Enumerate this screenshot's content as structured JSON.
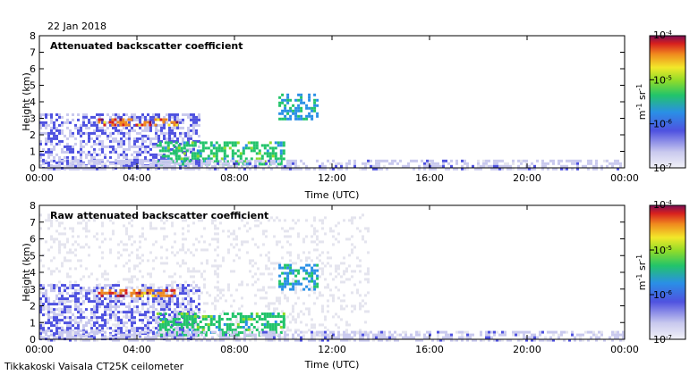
{
  "date_label": "22 Jan 2018",
  "footer": "Tikkakoski Vaisala CT25K ceilometer",
  "chart_data": [
    {
      "type": "heatmap",
      "title": "Attenuated backscatter coefficient",
      "xlabel": "Time (UTC)",
      "ylabel": "Height (km)",
      "xlim": [
        0,
        24
      ],
      "ylim": [
        0,
        8
      ],
      "x_ticks": [
        "00:00",
        "04:00",
        "08:00",
        "12:00",
        "16:00",
        "20:00",
        "00:00"
      ],
      "y_ticks": [
        "0",
        "1",
        "2",
        "3",
        "4",
        "5",
        "6",
        "7",
        "8"
      ],
      "colorbar": {
        "label": "m-1 sr-1",
        "ticks": [
          "10-7",
          "10-6",
          "10-5",
          "10-4"
        ],
        "range_log10": [
          -7,
          -4
        ]
      },
      "features": [
        {
          "t0": 0.0,
          "t1": 6.5,
          "h0": 0.0,
          "h1": 3.3,
          "level": -6.2
        },
        {
          "t0": 2.4,
          "t1": 5.6,
          "h0": 2.6,
          "h1": 3.0,
          "level": -4.2
        },
        {
          "t0": 4.8,
          "t1": 10.0,
          "h0": 0.2,
          "h1": 1.6,
          "level": -5.2
        },
        {
          "t0": 9.8,
          "t1": 11.4,
          "h0": 3.0,
          "h1": 4.5,
          "level": -5.5
        },
        {
          "t0": 0.0,
          "t1": 24.0,
          "h0": 0.0,
          "h1": 0.5,
          "level": -6.4
        }
      ]
    },
    {
      "type": "heatmap",
      "title": "Raw attenuated backscatter coefficient",
      "xlabel": "Time (UTC)",
      "ylabel": "Height (km)",
      "xlim": [
        0,
        24
      ],
      "ylim": [
        0,
        8
      ],
      "x_ticks": [
        "00:00",
        "04:00",
        "08:00",
        "12:00",
        "16:00",
        "20:00",
        "00:00"
      ],
      "y_ticks": [
        "0",
        "1",
        "2",
        "3",
        "4",
        "5",
        "6",
        "7",
        "8"
      ],
      "colorbar": {
        "label": "m-1 sr-1",
        "ticks": [
          "10-7",
          "10-6",
          "10-5",
          "10-4"
        ],
        "range_log10": [
          -7,
          -4
        ]
      },
      "features": [
        {
          "t0": 0.0,
          "t1": 13.5,
          "h0": 0.0,
          "h1": 7.5,
          "level": -6.9
        },
        {
          "t0": 0.0,
          "t1": 6.5,
          "h0": 0.0,
          "h1": 3.3,
          "level": -6.2
        },
        {
          "t0": 2.4,
          "t1": 5.6,
          "h0": 2.6,
          "h1": 3.0,
          "level": -4.2
        },
        {
          "t0": 4.8,
          "t1": 10.0,
          "h0": 0.2,
          "h1": 1.6,
          "level": -5.2
        },
        {
          "t0": 9.8,
          "t1": 11.4,
          "h0": 3.0,
          "h1": 4.5,
          "level": -5.5
        },
        {
          "t0": 0.0,
          "t1": 24.0,
          "h0": 0.0,
          "h1": 0.5,
          "level": -6.4
        }
      ]
    }
  ]
}
